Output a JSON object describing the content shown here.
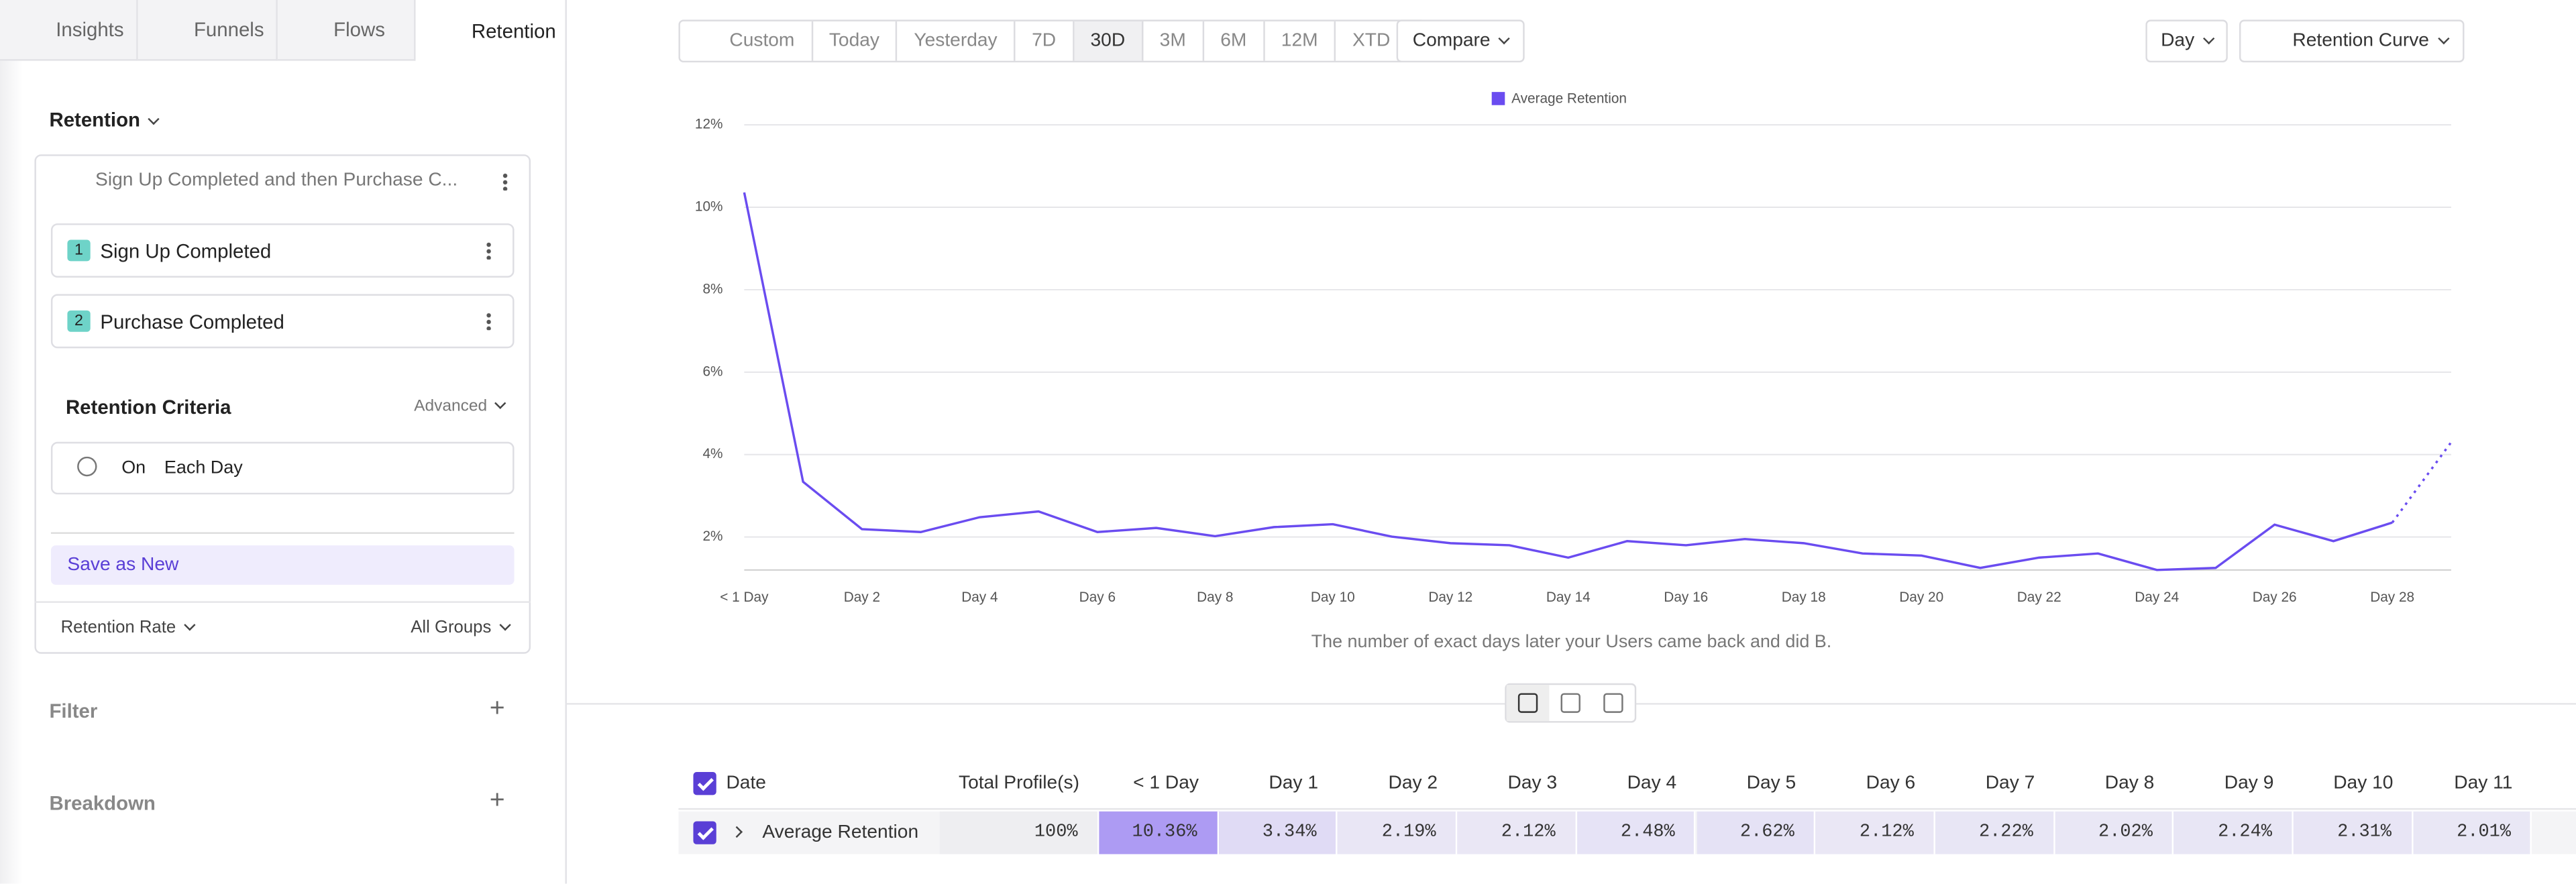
{
  "tabs": [
    "Insights",
    "Funnels",
    "Flows",
    "Retention"
  ],
  "sidebar": {
    "report_type": "Retention",
    "sequence": "Sign Up Completed and then Purchase C...",
    "steps": [
      {
        "index": "1",
        "label": "Sign Up Completed"
      },
      {
        "index": "2",
        "label": "Purchase Completed"
      }
    ],
    "criteria_title": "Retention Criteria",
    "criteria_mode": "Advanced",
    "criteria_on": "On",
    "criteria_value": "Each Day",
    "save": "Save as New",
    "metric": "Retention Rate",
    "groups": "All Groups",
    "filter": "Filter",
    "breakdown": "Breakdown"
  },
  "toolbar": {
    "ranges": [
      "Custom",
      "Today",
      "Yesterday",
      "7D",
      "30D",
      "3M",
      "6M",
      "12M",
      "XTD"
    ],
    "active_range": "30D",
    "compare": "Compare",
    "interval": "Day",
    "view": "Retention Curve"
  },
  "chart_data": {
    "type": "line",
    "legend": "top",
    "categories": [
      "< 1 Day",
      null,
      "Day 2",
      null,
      "Day 4",
      null,
      "Day 6",
      null,
      "Day 8",
      null,
      "Day 10",
      null,
      "Day 12",
      null,
      "Day 14",
      null,
      "Day 16",
      null,
      "Day 18",
      null,
      "Day 20",
      null,
      "Day 22",
      null,
      "Day 24",
      null,
      "Day 26",
      null,
      "Day 28",
      null
    ],
    "series": [
      {
        "name": "Average Retention",
        "color": "#6a4cf0",
        "values": [
          10.36,
          3.34,
          2.19,
          2.12,
          2.48,
          2.62,
          2.12,
          2.22,
          2.02,
          2.24,
          2.31,
          2.01,
          1.85,
          1.8,
          1.5,
          1.9,
          1.8,
          1.95,
          1.85,
          1.6,
          1.55,
          1.25,
          1.5,
          1.6,
          1.2,
          1.25,
          2.3,
          1.9,
          2.35,
          4.3
        ]
      }
    ],
    "last_segment_style": "dotted",
    "ylim": [
      1.2,
      12
    ],
    "yticks": [
      {
        "value": 2,
        "label": "2%"
      },
      {
        "value": 4,
        "label": "4%"
      },
      {
        "value": 6,
        "label": "6%"
      },
      {
        "value": 8,
        "label": "8%"
      },
      {
        "value": 10,
        "label": "10%"
      },
      {
        "value": 12,
        "label": "12%"
      }
    ],
    "grid": true,
    "caption": "The number of exact days later your Users came back and did B."
  },
  "table": {
    "columns": [
      "Date",
      "Total Profile(s)",
      "< 1 Day",
      "Day 1",
      "Day 2",
      "Day 3",
      "Day 4",
      "Day 5",
      "Day 6",
      "Day 7",
      "Day 8",
      "Day 9",
      "Day 10",
      "Day 11"
    ],
    "rows": [
      {
        "name": "Average Retention",
        "total": "100%",
        "values": [
          10.36,
          3.34,
          2.19,
          2.12,
          2.48,
          2.62,
          2.12,
          2.22,
          2.02,
          2.24,
          2.31,
          2.01
        ],
        "value_labels": [
          "10.36%",
          "3.34%",
          "2.19%",
          "2.12%",
          "2.48%",
          "2.62%",
          "2.12%",
          "2.22%",
          "2.02%",
          "2.24%",
          "2.31%",
          "2.01%"
        ]
      }
    ]
  }
}
